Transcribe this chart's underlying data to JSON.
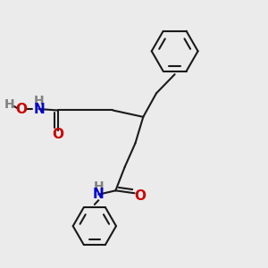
{
  "bg_color": "#ebebeb",
  "bond_color": "#1a1a1a",
  "N_color": "#0000cc",
  "O_color": "#cc0000",
  "H_color": "#808080",
  "line_width": 1.5,
  "font_size_atom": 10,
  "fig_w": 3.0,
  "fig_h": 3.0,
  "dpi": 100,
  "xlim": [
    0,
    10
  ],
  "ylim": [
    0,
    10
  ]
}
